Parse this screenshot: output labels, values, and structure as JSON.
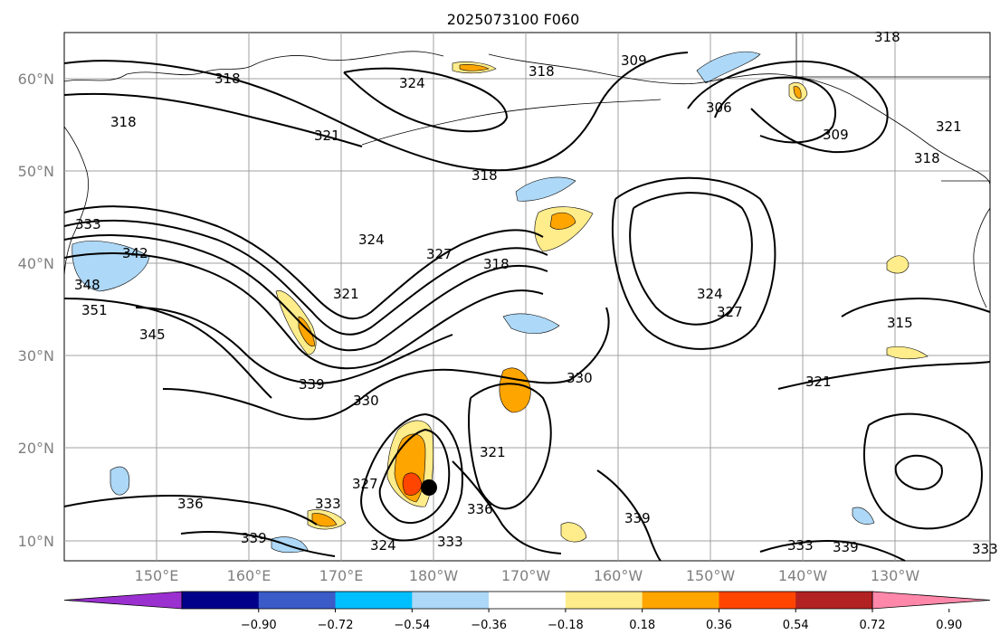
{
  "title": "2025073100 F060",
  "lat_labels": [
    "60°N",
    "50°N",
    "40°N",
    "30°N",
    "20°N",
    "10°N"
  ],
  "lon_labels": [
    "150°E",
    "160°E",
    "170°E",
    "180°W",
    "170°W",
    "160°W",
    "150°W",
    "140°W",
    "130°W"
  ],
  "colorbar": {
    "ticks": [
      "−0.90",
      "−0.72",
      "−0.54",
      "−0.36",
      "−0.18",
      "0.18",
      "0.36",
      "0.54",
      "0.72",
      "0.90"
    ],
    "colors": [
      "#9b30d0",
      "#00008b",
      "#3a5bc8",
      "#00bfff",
      "#add8f7",
      "#ffffff",
      "#ffec8b",
      "#ffa500",
      "#ff4500",
      "#b22222",
      "#ff88aa"
    ]
  },
  "contour_labels": [
    "318",
    "318",
    "324",
    "318",
    "309",
    "306",
    "321",
    "318",
    "309",
    "321",
    "318",
    "333",
    "342",
    "348",
    "351",
    "324",
    "327",
    "318",
    "321",
    "324",
    "327",
    "345",
    "315",
    "339",
    "330",
    "330",
    "321",
    "321",
    "327",
    "336",
    "333",
    "336",
    "339",
    "339",
    "324",
    "333",
    "333",
    "339",
    "333",
    "318"
  ]
}
